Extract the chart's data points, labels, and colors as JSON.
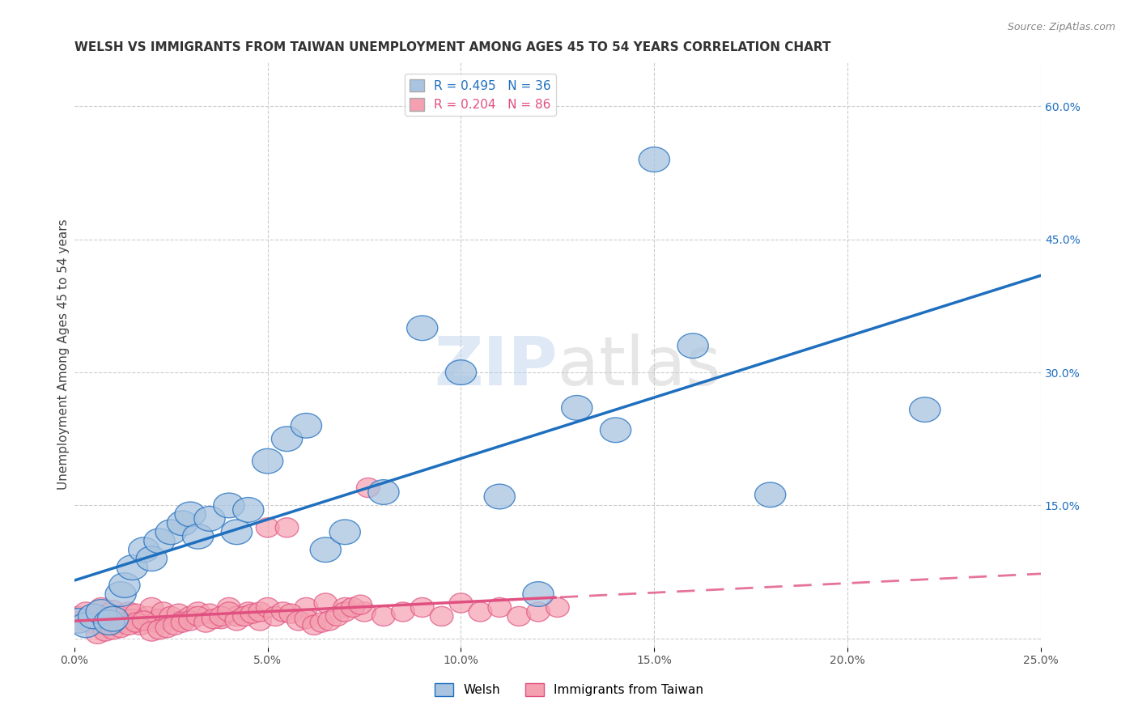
{
  "title": "WELSH VS IMMIGRANTS FROM TAIWAN UNEMPLOYMENT AMONG AGES 45 TO 54 YEARS CORRELATION CHART",
  "source": "Source: ZipAtlas.com",
  "xlabel": "",
  "ylabel": "Unemployment Among Ages 45 to 54 years",
  "xlim": [
    0,
    0.25
  ],
  "ylim": [
    -0.01,
    0.65
  ],
  "xticks": [
    0.0,
    0.05,
    0.1,
    0.15,
    0.2,
    0.25
  ],
  "yticks_right": [
    0.15,
    0.3,
    0.45,
    0.6
  ],
  "ytick_labels_right": [
    "15.0%",
    "30.0%",
    "45.0%",
    "60.0%"
  ],
  "xtick_labels": [
    "0.0%",
    "5.0%",
    "10.0%",
    "15.0%",
    "20.0%",
    "25.0%"
  ],
  "welsh_R": 0.495,
  "welsh_N": 36,
  "taiwan_R": 0.204,
  "taiwan_N": 86,
  "welsh_color": "#a8c4e0",
  "welsh_line_color": "#1f6fbf",
  "taiwan_color": "#f4a0b0",
  "taiwan_line_color": "#e05080",
  "watermark_zip": "ZIP",
  "watermark_atlas": "atlas",
  "background_color": "#ffffff",
  "grid_color": "#cccccc",
  "welsh_scatter_x": [
    0.001,
    0.003,
    0.005,
    0.007,
    0.009,
    0.01,
    0.012,
    0.013,
    0.015,
    0.018,
    0.02,
    0.022,
    0.025,
    0.028,
    0.03,
    0.032,
    0.035,
    0.04,
    0.042,
    0.045,
    0.05,
    0.055,
    0.06,
    0.065,
    0.07,
    0.08,
    0.09,
    0.1,
    0.11,
    0.12,
    0.13,
    0.14,
    0.15,
    0.16,
    0.18,
    0.22
  ],
  "welsh_scatter_y": [
    0.02,
    0.015,
    0.025,
    0.03,
    0.018,
    0.022,
    0.05,
    0.06,
    0.08,
    0.1,
    0.09,
    0.11,
    0.12,
    0.13,
    0.14,
    0.115,
    0.135,
    0.15,
    0.12,
    0.145,
    0.2,
    0.225,
    0.24,
    0.1,
    0.12,
    0.165,
    0.35,
    0.3,
    0.16,
    0.05,
    0.26,
    0.235,
    0.54,
    0.33,
    0.162,
    0.258
  ],
  "taiwan_scatter_x": [
    0.001,
    0.002,
    0.003,
    0.004,
    0.005,
    0.006,
    0.007,
    0.008,
    0.009,
    0.01,
    0.011,
    0.012,
    0.013,
    0.014,
    0.015,
    0.016,
    0.017,
    0.018,
    0.019,
    0.02,
    0.021,
    0.022,
    0.023,
    0.025,
    0.027,
    0.028,
    0.03,
    0.032,
    0.035,
    0.038,
    0.04,
    0.042,
    0.045,
    0.048,
    0.05,
    0.055,
    0.06,
    0.065,
    0.07,
    0.075,
    0.08,
    0.085,
    0.09,
    0.095,
    0.1,
    0.105,
    0.11,
    0.115,
    0.12,
    0.125,
    0.006,
    0.008,
    0.01,
    0.012,
    0.014,
    0.016,
    0.018,
    0.02,
    0.022,
    0.024,
    0.026,
    0.028,
    0.03,
    0.032,
    0.034,
    0.036,
    0.038,
    0.04,
    0.042,
    0.044,
    0.046,
    0.048,
    0.05,
    0.052,
    0.054,
    0.056,
    0.058,
    0.06,
    0.062,
    0.064,
    0.066,
    0.068,
    0.07,
    0.072,
    0.074,
    0.076
  ],
  "taiwan_scatter_y": [
    0.025,
    0.02,
    0.03,
    0.018,
    0.022,
    0.015,
    0.035,
    0.025,
    0.028,
    0.032,
    0.02,
    0.025,
    0.018,
    0.03,
    0.022,
    0.028,
    0.015,
    0.02,
    0.025,
    0.035,
    0.018,
    0.022,
    0.03,
    0.025,
    0.028,
    0.02,
    0.025,
    0.03,
    0.028,
    0.022,
    0.035,
    0.025,
    0.03,
    0.02,
    0.125,
    0.125,
    0.035,
    0.04,
    0.035,
    0.03,
    0.025,
    0.03,
    0.035,
    0.025,
    0.04,
    0.03,
    0.035,
    0.025,
    0.03,
    0.035,
    0.005,
    0.008,
    0.01,
    0.012,
    0.015,
    0.018,
    0.02,
    0.008,
    0.01,
    0.012,
    0.015,
    0.018,
    0.02,
    0.025,
    0.018,
    0.022,
    0.025,
    0.03,
    0.02,
    0.025,
    0.028,
    0.03,
    0.035,
    0.025,
    0.03,
    0.028,
    0.02,
    0.022,
    0.015,
    0.018,
    0.02,
    0.025,
    0.03,
    0.035,
    0.038,
    0.17
  ],
  "legend_welsh_label": "R = 0.495   N = 36",
  "legend_taiwan_label": "R = 0.204   N = 86",
  "bottom_legend_welsh": "Welsh",
  "bottom_legend_taiwan": "Immigrants from Taiwan"
}
